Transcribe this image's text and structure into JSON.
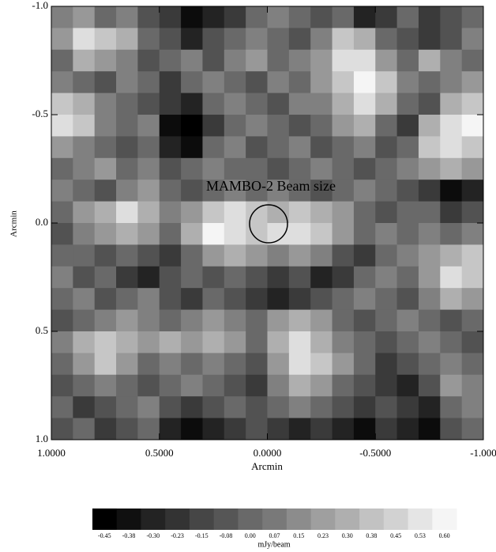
{
  "chart_data": {
    "type": "heatmap",
    "annotation": "MAMBO-2 Beam size",
    "xlabel": "Arcmin",
    "ylabel": "Arcmin",
    "xlim": [
      1,
      -1
    ],
    "ylim": [
      -1,
      1
    ],
    "xticks": [
      {
        "value": 1,
        "label": "1.0000"
      },
      {
        "value": 0.5,
        "label": "0.5000"
      },
      {
        "value": 0,
        "label": "0.0000"
      },
      {
        "value": -0.5,
        "label": "-0.5000"
      },
      {
        "value": -1,
        "label": "-1.000"
      }
    ],
    "yticks": [
      {
        "value": -1,
        "label": "-1.0"
      },
      {
        "value": -0.5,
        "label": "-0.5"
      },
      {
        "value": 0,
        "label": "0.0"
      },
      {
        "value": 0.5,
        "label": "0.5"
      },
      {
        "value": 1,
        "label": "1.0"
      }
    ],
    "zlim": [
      -0.45,
      0.6
    ],
    "colorbar": {
      "label": "mJy/beam",
      "ticks": [
        {
          "value": -0.45,
          "label": "-0.45"
        },
        {
          "value": -0.38,
          "label": "-0.38"
        },
        {
          "value": -0.3,
          "label": "-0.30"
        },
        {
          "value": -0.23,
          "label": "-0.23"
        },
        {
          "value": -0.15,
          "label": "-0.15"
        },
        {
          "value": -0.08,
          "label": "-0.08"
        },
        {
          "value": 0,
          "label": "0.00"
        },
        {
          "value": 0.07,
          "label": "0.07"
        },
        {
          "value": 0.15,
          "label": "0.15"
        },
        {
          "value": 0.23,
          "label": "0.23"
        },
        {
          "value": 0.3,
          "label": "0.30"
        },
        {
          "value": 0.38,
          "label": "0.38"
        },
        {
          "value": 0.45,
          "label": "0.45"
        },
        {
          "value": 0.53,
          "label": "0.53"
        },
        {
          "value": 0.6,
          "label": "0.60"
        }
      ]
    },
    "z": [
      [
        0.1,
        0.2,
        0.0,
        0.1,
        -0.1,
        -0.2,
        -0.4,
        -0.3,
        -0.2,
        0.0,
        0.1,
        0.0,
        -0.1,
        0.0,
        -0.3,
        -0.2,
        0.0,
        -0.2,
        -0.1,
        0.0
      ],
      [
        0.2,
        0.5,
        0.4,
        0.3,
        0.0,
        -0.1,
        -0.3,
        -0.1,
        0.0,
        0.1,
        0.0,
        -0.1,
        0.1,
        0.4,
        0.3,
        0.0,
        -0.1,
        -0.2,
        -0.1,
        0.1
      ],
      [
        0.0,
        0.3,
        0.2,
        0.1,
        -0.1,
        0.0,
        0.1,
        -0.1,
        0.1,
        0.2,
        0.0,
        0.1,
        0.2,
        0.5,
        0.5,
        0.2,
        0.0,
        0.3,
        0.1,
        0.0
      ],
      [
        0.1,
        0.0,
        -0.1,
        0.1,
        0.0,
        -0.2,
        0.0,
        0.1,
        0.0,
        -0.1,
        0.1,
        0.0,
        0.2,
        0.4,
        0.6,
        0.4,
        0.1,
        0.0,
        0.1,
        0.2
      ],
      [
        0.4,
        0.3,
        0.1,
        0.0,
        -0.1,
        -0.2,
        -0.3,
        0.0,
        0.1,
        0.0,
        -0.1,
        0.1,
        0.1,
        0.3,
        0.5,
        0.3,
        0.0,
        -0.1,
        0.3,
        0.4
      ],
      [
        0.5,
        0.4,
        0.1,
        0.0,
        0.1,
        -0.4,
        -0.45,
        -0.2,
        0.0,
        0.1,
        0.0,
        -0.1,
        0.0,
        0.2,
        0.3,
        0.0,
        -0.2,
        0.3,
        0.5,
        0.6
      ],
      [
        0.2,
        0.1,
        0.0,
        -0.1,
        0.0,
        -0.3,
        -0.4,
        0.0,
        0.1,
        -0.1,
        0.0,
        0.1,
        -0.1,
        0.0,
        0.1,
        -0.1,
        0.0,
        0.4,
        0.5,
        0.4
      ],
      [
        0.0,
        0.1,
        0.2,
        0.0,
        0.1,
        -0.1,
        0.0,
        0.1,
        0.0,
        0.0,
        -0.1,
        0.0,
        0.1,
        0.0,
        -0.1,
        0.0,
        0.1,
        0.2,
        0.3,
        0.2
      ],
      [
        0.1,
        0.0,
        -0.1,
        0.1,
        0.2,
        0.0,
        -0.1,
        0.0,
        0.1,
        0.0,
        0.1,
        0.0,
        -0.1,
        0.0,
        0.1,
        0.0,
        -0.1,
        -0.2,
        -0.4,
        -0.3
      ],
      [
        0.0,
        0.2,
        0.3,
        0.5,
        0.3,
        0.1,
        0.2,
        0.4,
        0.5,
        0.4,
        0.3,
        0.4,
        0.3,
        0.2,
        0.0,
        -0.1,
        0.0,
        0.0,
        -0.2,
        -0.1
      ],
      [
        -0.1,
        0.1,
        0.2,
        0.3,
        0.2,
        0.0,
        0.3,
        0.6,
        0.5,
        0.4,
        0.5,
        0.5,
        0.4,
        0.2,
        0.0,
        0.1,
        0.0,
        0.1,
        0.0,
        0.1
      ],
      [
        0.0,
        0.0,
        -0.1,
        0.0,
        -0.1,
        -0.2,
        0.0,
        0.2,
        0.3,
        0.2,
        0.1,
        0.2,
        0.1,
        -0.1,
        -0.2,
        0.0,
        0.1,
        0.2,
        0.3,
        0.4
      ],
      [
        0.1,
        -0.1,
        0.0,
        -0.2,
        -0.3,
        -0.1,
        0.0,
        -0.1,
        0.0,
        -0.1,
        -0.2,
        -0.1,
        -0.3,
        -0.2,
        0.0,
        0.1,
        0.0,
        0.2,
        0.5,
        0.4
      ],
      [
        0.0,
        0.1,
        -0.1,
        0.0,
        0.1,
        -0.1,
        -0.2,
        0.0,
        -0.1,
        -0.2,
        -0.3,
        -0.2,
        -0.1,
        0.0,
        0.1,
        0.0,
        -0.1,
        0.1,
        0.3,
        0.2
      ],
      [
        -0.1,
        0.0,
        0.1,
        0.2,
        0.1,
        0.0,
        0.1,
        0.2,
        0.1,
        0.0,
        0.2,
        0.3,
        0.2,
        0.0,
        -0.1,
        0.0,
        0.1,
        0.0,
        -0.1,
        0.0
      ],
      [
        0.1,
        0.3,
        0.4,
        0.3,
        0.2,
        0.3,
        0.2,
        0.3,
        0.2,
        0.0,
        0.3,
        0.5,
        0.3,
        0.1,
        0.0,
        -0.1,
        0.0,
        0.1,
        0.0,
        -0.1
      ],
      [
        0.0,
        0.2,
        0.4,
        0.2,
        0.0,
        0.1,
        0.0,
        0.1,
        0.0,
        -0.1,
        0.2,
        0.5,
        0.4,
        0.2,
        0.0,
        -0.2,
        -0.1,
        0.0,
        0.1,
        0.0
      ],
      [
        -0.1,
        0.0,
        0.1,
        0.0,
        -0.1,
        0.0,
        0.1,
        0.0,
        -0.1,
        -0.2,
        0.1,
        0.3,
        0.2,
        0.0,
        -0.1,
        -0.2,
        -0.3,
        -0.1,
        0.2,
        0.1
      ],
      [
        0.0,
        -0.2,
        -0.1,
        0.0,
        0.1,
        -0.1,
        -0.2,
        -0.1,
        0.0,
        -0.1,
        0.0,
        0.1,
        0.0,
        -0.1,
        -0.2,
        -0.1,
        -0.2,
        -0.3,
        0.0,
        0.1
      ],
      [
        -0.1,
        0.0,
        -0.2,
        -0.1,
        0.0,
        -0.3,
        -0.4,
        -0.3,
        -0.2,
        -0.1,
        -0.2,
        -0.3,
        -0.2,
        -0.3,
        -0.4,
        -0.2,
        -0.3,
        -0.4,
        -0.1,
        0.0
      ]
    ]
  }
}
